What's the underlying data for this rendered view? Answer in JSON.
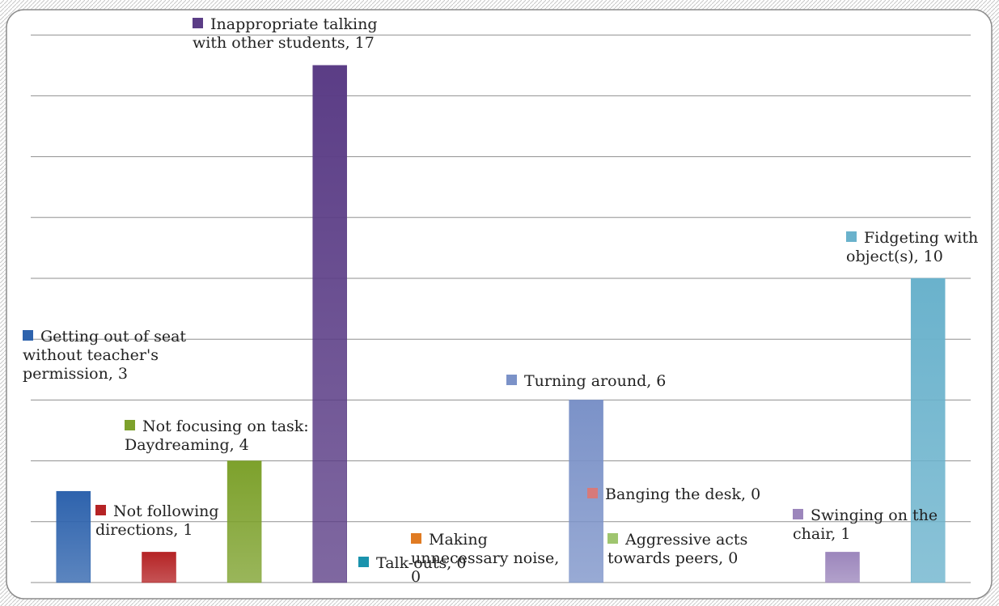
{
  "chart_data": {
    "type": "bar",
    "ylim": [
      0,
      18
    ],
    "grid": true,
    "series": [
      {
        "values": [
          3,
          1,
          4,
          17,
          0,
          0,
          6,
          0,
          0,
          1,
          10
        ]
      }
    ],
    "categories": [
      "Getting out of seat without teacher's permission",
      "Not following directions",
      "Not focusing on task: Daydreaming",
      "Inappropriate talking with other students",
      "Talk-outs",
      "Making unnecessary noise",
      "Turning around",
      "Banging the desk",
      "Aggressive acts towards peers",
      "Swinging on the chair",
      "Fidgeting with object(s)"
    ],
    "colors": [
      "#2e63ad",
      "#b52325",
      "#7da12c",
      "#5b3d86",
      "#1a93ad",
      "#e07b22",
      "#7b92c8",
      "#d67a7a",
      "#9fc56f",
      "#9c86bc",
      "#6ab2cc"
    ],
    "data_labels": [
      "Getting out of seat without teacher's permission, 3",
      "Not following directions, 1",
      "Not focusing on task: Daydreaming, 4",
      "Inappropriate talking with other students, 17",
      "Talk-outs, 0",
      "Making unnecessary noise, 0",
      "Turning around, 6",
      "Banging the desk, 0",
      "Aggressive acts towards peers, 0",
      "Swinging on the chair, 1",
      "Fidgeting with object(s), 10"
    ]
  }
}
